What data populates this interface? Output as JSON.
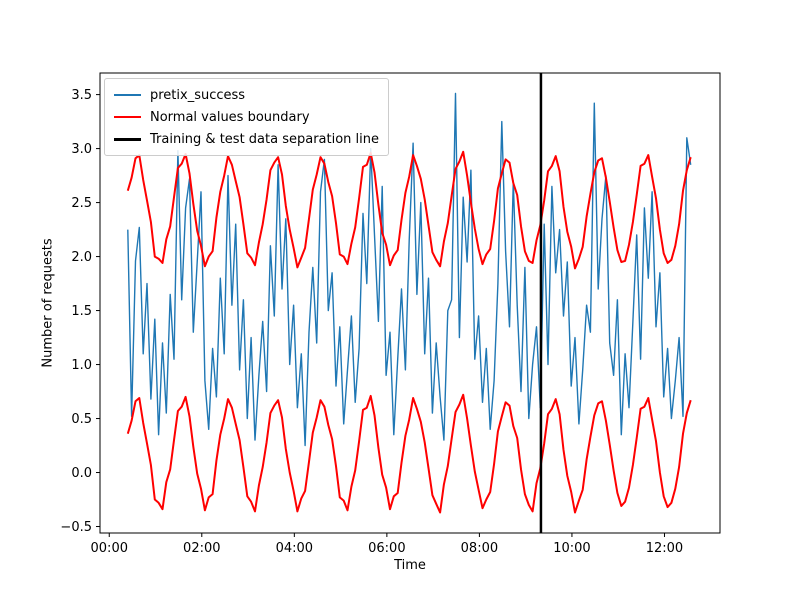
{
  "figure": {
    "background": "#ffffff"
  },
  "chart_data": {
    "type": "line",
    "title": "",
    "xlabel": "Time",
    "ylabel": "Number of requests",
    "grid": false,
    "xlim_hours": [
      -0.2,
      13.2
    ],
    "ylim": [
      -0.56,
      3.7
    ],
    "x_ticks": [
      {
        "hours": 0,
        "label": "00:00"
      },
      {
        "hours": 2,
        "label": "02:00"
      },
      {
        "hours": 4,
        "label": "04:00"
      },
      {
        "hours": 6,
        "label": "06:00"
      },
      {
        "hours": 8,
        "label": "08:00"
      },
      {
        "hours": 10,
        "label": "10:00"
      },
      {
        "hours": 12,
        "label": "12:00"
      }
    ],
    "y_ticks": [
      {
        "value": -0.5,
        "label": "−0.5"
      },
      {
        "value": 0.0,
        "label": "0.0"
      },
      {
        "value": 0.5,
        "label": "0.5"
      },
      {
        "value": 1.0,
        "label": "1.0"
      },
      {
        "value": 1.5,
        "label": "1.5"
      },
      {
        "value": 2.0,
        "label": "2.0"
      },
      {
        "value": 2.5,
        "label": "2.5"
      },
      {
        "value": 3.0,
        "label": "3.0"
      },
      {
        "value": 3.5,
        "label": "3.5"
      }
    ],
    "legend": {
      "position": "upper-left",
      "entries": [
        {
          "label": "pretix_success",
          "color": "#1f77b4"
        },
        {
          "label": "Normal values boundary",
          "color": "#ff0000"
        },
        {
          "label": "Training & test data separation line",
          "color": "#000000"
        }
      ]
    },
    "x_start_hours": 0.4,
    "x_step_hours": 0.0833333,
    "series": [
      {
        "name": "pretix_success",
        "color": "#1f77b4",
        "linewidth": 1.4,
        "values": [
          2.25,
          0.52,
          1.96,
          2.27,
          1.1,
          1.75,
          0.68,
          1.42,
          0.35,
          1.2,
          0.55,
          1.65,
          1.05,
          2.98,
          1.6,
          2.45,
          2.72,
          1.3,
          1.95,
          2.6,
          0.85,
          0.4,
          1.15,
          0.7,
          1.8,
          1.1,
          2.75,
          1.55,
          2.3,
          0.95,
          1.6,
          0.5,
          1.25,
          0.3,
          0.9,
          1.4,
          0.75,
          2.1,
          1.45,
          2.85,
          1.7,
          2.35,
          1.0,
          1.55,
          0.6,
          1.1,
          0.25,
          1.3,
          1.9,
          1.2,
          2.6,
          2.9,
          1.5,
          1.85,
          0.8,
          1.35,
          0.45,
          0.95,
          1.45,
          0.65,
          1.15,
          2.4,
          1.75,
          3.0,
          2.2,
          1.4,
          2.65,
          0.9,
          1.3,
          0.35,
          1.05,
          1.7,
          0.95,
          2.15,
          3.05,
          1.65,
          2.5,
          1.1,
          1.8,
          0.55,
          1.2,
          0.7,
          0.3,
          1.5,
          1.6,
          3.51,
          1.25,
          2.55,
          1.95,
          2.8,
          1.05,
          1.45,
          0.65,
          1.15,
          0.4,
          0.85,
          1.75,
          3.25,
          2.05,
          1.35,
          2.7,
          1.55,
          0.75,
          1.9,
          0.5,
          1.0,
          1.35,
          0.6,
          2.3,
          1.0,
          2.65,
          1.85,
          2.25,
          1.45,
          1.95,
          0.8,
          1.25,
          0.45,
          0.95,
          1.55,
          1.3,
          3.42,
          1.7,
          2.35,
          2.75,
          1.2,
          0.9,
          1.6,
          0.35,
          1.1,
          0.6,
          1.4,
          2.2,
          1.05,
          2.45,
          1.8,
          2.6,
          1.35,
          1.85,
          0.7,
          1.15,
          0.5,
          0.85,
          1.25,
          0.52,
          3.1,
          2.85
        ]
      },
      {
        "name": "normal-values-upper-boundary",
        "color": "#ff0000",
        "linewidth": 2,
        "values": [
          2.61,
          2.73,
          2.91,
          2.94,
          2.71,
          2.52,
          2.32,
          2.0,
          1.98,
          1.94,
          2.16,
          2.28,
          2.55,
          2.82,
          2.86,
          2.95,
          2.77,
          2.49,
          2.24,
          2.1,
          1.91,
          2.0,
          2.05,
          2.36,
          2.6,
          2.75,
          2.93,
          2.85,
          2.7,
          2.55,
          2.3,
          2.03,
          1.99,
          1.92,
          2.13,
          2.3,
          2.53,
          2.8,
          2.87,
          2.92,
          2.76,
          2.47,
          2.25,
          2.08,
          1.9,
          1.99,
          2.08,
          2.35,
          2.62,
          2.76,
          2.92,
          2.86,
          2.69,
          2.56,
          2.31,
          2.02,
          2.0,
          1.93,
          2.12,
          2.27,
          2.54,
          2.83,
          2.85,
          2.96,
          2.78,
          2.48,
          2.22,
          2.11,
          1.92,
          2.01,
          2.06,
          2.34,
          2.59,
          2.74,
          2.94,
          2.84,
          2.72,
          2.53,
          2.29,
          2.04,
          1.97,
          1.91,
          2.14,
          2.31,
          2.56,
          2.81,
          2.88,
          2.97,
          2.75,
          2.5,
          2.26,
          2.07,
          1.93,
          2.02,
          2.07,
          2.33,
          2.63,
          2.77,
          2.9,
          2.87,
          2.68,
          2.57,
          2.28,
          2.05,
          1.96,
          1.94,
          2.15,
          2.29,
          2.52,
          2.79,
          2.84,
          2.93,
          2.79,
          2.46,
          2.23,
          2.09,
          1.89,
          1.98,
          2.09,
          2.37,
          2.58,
          2.78,
          2.89,
          2.91,
          2.73,
          2.51,
          2.27,
          2.06,
          1.95,
          1.96,
          2.11,
          2.32,
          2.57,
          2.84,
          2.86,
          2.94,
          2.74,
          2.54,
          2.25,
          2.03,
          1.94,
          1.97,
          2.1,
          2.3,
          2.61,
          2.8,
          2.92
        ]
      },
      {
        "name": "normal-values-lower-boundary",
        "color": "#ff0000",
        "linewidth": 2,
        "values": [
          0.36,
          0.48,
          0.66,
          0.69,
          0.46,
          0.27,
          0.07,
          -0.25,
          -0.28,
          -0.34,
          -0.09,
          0.03,
          0.3,
          0.57,
          0.61,
          0.7,
          0.52,
          0.24,
          -0.01,
          -0.15,
          -0.35,
          -0.23,
          -0.2,
          0.11,
          0.35,
          0.5,
          0.68,
          0.6,
          0.45,
          0.3,
          0.05,
          -0.22,
          -0.27,
          -0.36,
          -0.12,
          0.05,
          0.28,
          0.55,
          0.62,
          0.67,
          0.51,
          0.22,
          0.0,
          -0.17,
          -0.36,
          -0.24,
          -0.17,
          0.1,
          0.37,
          0.51,
          0.67,
          0.61,
          0.44,
          0.31,
          0.06,
          -0.23,
          -0.26,
          -0.35,
          -0.13,
          0.02,
          0.29,
          0.58,
          0.6,
          0.71,
          0.53,
          0.23,
          -0.02,
          -0.14,
          -0.34,
          -0.22,
          -0.19,
          0.09,
          0.34,
          0.49,
          0.69,
          0.59,
          0.47,
          0.28,
          0.04,
          -0.21,
          -0.29,
          -0.37,
          -0.11,
          0.06,
          0.31,
          0.56,
          0.63,
          0.72,
          0.5,
          0.25,
          0.01,
          -0.16,
          -0.33,
          -0.25,
          -0.18,
          0.08,
          0.38,
          0.52,
          0.65,
          0.62,
          0.43,
          0.32,
          0.03,
          -0.2,
          -0.3,
          -0.36,
          -0.1,
          0.04,
          0.27,
          0.54,
          0.59,
          0.68,
          0.54,
          0.21,
          -0.03,
          -0.18,
          -0.37,
          -0.26,
          -0.16,
          0.12,
          0.33,
          0.53,
          0.64,
          0.66,
          0.48,
          0.26,
          0.02,
          -0.19,
          -0.31,
          -0.27,
          -0.14,
          0.07,
          0.32,
          0.59,
          0.61,
          0.69,
          0.49,
          0.29,
          0.0,
          -0.22,
          -0.32,
          -0.28,
          -0.15,
          0.05,
          0.36,
          0.55,
          0.67
        ]
      }
    ],
    "vline": {
      "label": "Training & test data separation line",
      "x_hours": 9.33,
      "color": "#000000",
      "linewidth": 2.5
    }
  }
}
